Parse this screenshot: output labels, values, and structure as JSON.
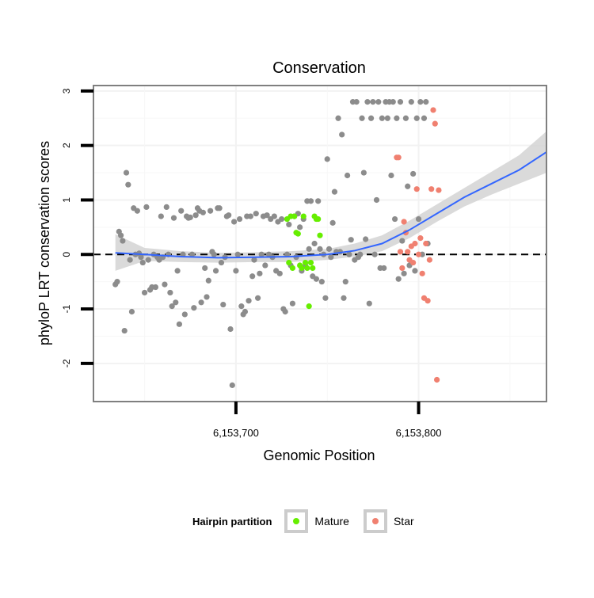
{
  "chart_data": {
    "type": "scatter",
    "title": "Conservation",
    "xlabel": "Genomic Position",
    "ylabel": "phyloP LRT conservation scores",
    "xlim": [
      6153622,
      6153870
    ],
    "ylim": [
      -2.7,
      3.1
    ],
    "x_ticks": [
      {
        "value": 6153700,
        "label": "6,153,700"
      },
      {
        "value": 6153800,
        "label": "6,153,800"
      }
    ],
    "y_ticks": [
      {
        "value": -2,
        "label": "-2"
      },
      {
        "value": -1,
        "label": "-1"
      },
      {
        "value": 0,
        "label": "0"
      },
      {
        "value": 1,
        "label": "1"
      },
      {
        "value": 2,
        "label": "2"
      },
      {
        "value": 3,
        "label": "3"
      }
    ],
    "reference_line": {
      "y": 0,
      "style": "dashed",
      "color": "#000000"
    },
    "grid": true,
    "legend": {
      "title": "Hairpin partition",
      "position": "bottom",
      "entries": [
        {
          "name": "Mature",
          "color": "#66ee00"
        },
        {
          "name": "Star",
          "color": "#f08070"
        }
      ]
    },
    "colors": {
      "other": "#8c8c8c",
      "Mature": "#66ee00",
      "Star": "#f08070",
      "smooth": "#3366ff",
      "band": "#d3d3d3"
    },
    "series": [
      {
        "name": "",
        "color": "#8c8c8c",
        "points": [
          [
            6153634,
            -0.55
          ],
          [
            6153635,
            -0.5
          ],
          [
            6153636,
            0.42
          ],
          [
            6153637,
            0.35
          ],
          [
            6153638,
            0.25
          ],
          [
            6153639,
            -1.4
          ],
          [
            6153640,
            1.5
          ],
          [
            6153641,
            1.28
          ],
          [
            6153642,
            -0.1
          ],
          [
            6153643,
            -1.05
          ],
          [
            6153644,
            0.85
          ],
          [
            6153645,
            0.0
          ],
          [
            6153646,
            0.8
          ],
          [
            6153647,
            0.02
          ],
          [
            6153648,
            -0.05
          ],
          [
            6153649,
            -0.15
          ],
          [
            6153650,
            -0.7
          ],
          [
            6153651,
            0.87
          ],
          [
            6153652,
            -0.1
          ],
          [
            6153653,
            -0.65
          ],
          [
            6153654,
            -0.6
          ],
          [
            6153655,
            0.0
          ],
          [
            6153656,
            -0.6
          ],
          [
            6153657,
            -0.05
          ],
          [
            6153658,
            -0.1
          ],
          [
            6153659,
            0.7
          ],
          [
            6153660,
            -0.05
          ],
          [
            6153661,
            -0.55
          ],
          [
            6153662,
            0.87
          ],
          [
            6153663,
            0.0
          ],
          [
            6153664,
            -0.7
          ],
          [
            6153665,
            -0.95
          ],
          [
            6153666,
            0.67
          ],
          [
            6153667,
            -0.88
          ],
          [
            6153668,
            -0.3
          ],
          [
            6153669,
            -1.28
          ],
          [
            6153670,
            0.8
          ],
          [
            6153671,
            0.0
          ],
          [
            6153672,
            -1.1
          ],
          [
            6153673,
            0.7
          ],
          [
            6153674,
            0.67
          ],
          [
            6153675,
            0.68
          ],
          [
            6153676,
            0.0
          ],
          [
            6153677,
            -0.98
          ],
          [
            6153678,
            0.72
          ],
          [
            6153679,
            0.85
          ],
          [
            6153680,
            0.8
          ],
          [
            6153681,
            -0.88
          ],
          [
            6153682,
            0.77
          ],
          [
            6153683,
            -0.25
          ],
          [
            6153684,
            -0.78
          ],
          [
            6153685,
            -0.48
          ],
          [
            6153686,
            0.8
          ],
          [
            6153687,
            0.05
          ],
          [
            6153688,
            0.0
          ],
          [
            6153689,
            -0.3
          ],
          [
            6153690,
            0.85
          ],
          [
            6153691,
            0.85
          ],
          [
            6153692,
            -0.15
          ],
          [
            6153693,
            -0.92
          ],
          [
            6153694,
            -0.05
          ],
          [
            6153695,
            0.7
          ],
          [
            6153696,
            0.72
          ],
          [
            6153697,
            -1.37
          ],
          [
            6153698,
            -2.4
          ],
          [
            6153699,
            0.6
          ],
          [
            6153700,
            -0.3
          ],
          [
            6153701,
            0.0
          ],
          [
            6153702,
            0.65
          ],
          [
            6153703,
            -0.95
          ],
          [
            6153704,
            -1.1
          ],
          [
            6153705,
            -1.05
          ],
          [
            6153706,
            0.7
          ],
          [
            6153707,
            -0.85
          ],
          [
            6153708,
            0.7
          ],
          [
            6153709,
            -0.4
          ],
          [
            6153710,
            -0.1
          ],
          [
            6153711,
            0.75
          ],
          [
            6153712,
            -0.8
          ],
          [
            6153713,
            -0.35
          ],
          [
            6153714,
            0.0
          ],
          [
            6153715,
            0.7
          ],
          [
            6153716,
            -0.2
          ],
          [
            6153717,
            0.72
          ],
          [
            6153718,
            0.0
          ],
          [
            6153719,
            0.65
          ],
          [
            6153720,
            -0.05
          ],
          [
            6153721,
            0.7
          ],
          [
            6153722,
            -0.3
          ],
          [
            6153723,
            0.6
          ],
          [
            6153724,
            -0.35
          ],
          [
            6153725,
            0.65
          ],
          [
            6153726,
            -1.0
          ],
          [
            6153727,
            -1.05
          ],
          [
            6153728,
            0.0
          ],
          [
            6153729,
            0.55
          ],
          [
            6153730,
            -0.2
          ],
          [
            6153731,
            -0.9
          ],
          [
            6153732,
            0.7
          ],
          [
            6153733,
            -0.05
          ],
          [
            6153734,
            0.75
          ],
          [
            6153735,
            0.5
          ],
          [
            6153736,
            -0.3
          ],
          [
            6153737,
            0.65
          ],
          [
            6153738,
            -0.2
          ],
          [
            6153739,
            0.98
          ],
          [
            6153740,
            0.1
          ],
          [
            6153741,
            0.98
          ],
          [
            6153742,
            -0.4
          ],
          [
            6153743,
            0.2
          ],
          [
            6153744,
            -0.45
          ],
          [
            6153745,
            0.98
          ],
          [
            6153746,
            0.1
          ],
          [
            6153747,
            -0.5
          ],
          [
            6153748,
            0.0
          ],
          [
            6153749,
            -0.8
          ],
          [
            6153750,
            1.75
          ],
          [
            6153751,
            0.1
          ],
          [
            6153752,
            -0.05
          ],
          [
            6153753,
            0.58
          ],
          [
            6153754,
            1.15
          ],
          [
            6153755,
            0.05
          ],
          [
            6153756,
            2.5
          ],
          [
            6153757,
            0.05
          ],
          [
            6153758,
            2.2
          ],
          [
            6153759,
            -0.8
          ],
          [
            6153760,
            -0.5
          ],
          [
            6153761,
            1.45
          ],
          [
            6153762,
            0.0
          ],
          [
            6153763,
            0.27
          ],
          [
            6153764,
            2.8
          ],
          [
            6153765,
            -0.1
          ],
          [
            6153766,
            2.8
          ],
          [
            6153767,
            -0.05
          ],
          [
            6153768,
            0.0
          ],
          [
            6153769,
            2.5
          ],
          [
            6153770,
            1.5
          ],
          [
            6153771,
            0.28
          ],
          [
            6153772,
            2.8
          ],
          [
            6153773,
            -0.9
          ],
          [
            6153774,
            2.5
          ],
          [
            6153775,
            2.8
          ],
          [
            6153776,
            0.0
          ],
          [
            6153777,
            1.0
          ],
          [
            6153778,
            2.8
          ],
          [
            6153779,
            -0.25
          ],
          [
            6153780,
            2.5
          ],
          [
            6153781,
            -0.25
          ],
          [
            6153782,
            2.8
          ],
          [
            6153783,
            2.5
          ],
          [
            6153784,
            2.8
          ],
          [
            6153785,
            1.45
          ],
          [
            6153786,
            2.8
          ],
          [
            6153787,
            0.65
          ],
          [
            6153788,
            2.5
          ],
          [
            6153789,
            -0.45
          ],
          [
            6153790,
            2.8
          ],
          [
            6153791,
            0.25
          ],
          [
            6153792,
            -0.35
          ],
          [
            6153793,
            2.5
          ],
          [
            6153794,
            1.25
          ],
          [
            6153795,
            -0.2
          ],
          [
            6153796,
            2.8
          ],
          [
            6153797,
            1.48
          ],
          [
            6153798,
            -0.3
          ],
          [
            6153799,
            2.5
          ],
          [
            6153800,
            0.65
          ],
          [
            6153801,
            2.8
          ],
          [
            6153802,
            0.0
          ],
          [
            6153803,
            2.5
          ],
          [
            6153804,
            2.8
          ],
          [
            6153805,
            0.2
          ]
        ]
      },
      {
        "name": "Mature",
        "color": "#66ee00",
        "points": [
          [
            6153728,
            0.65
          ],
          [
            6153729,
            -0.15
          ],
          [
            6153730,
            0.7
          ],
          [
            6153731,
            -0.25
          ],
          [
            6153732,
            0.7
          ],
          [
            6153733,
            0.4
          ],
          [
            6153734,
            0.38
          ],
          [
            6153735,
            -0.2
          ],
          [
            6153736,
            -0.25
          ],
          [
            6153737,
            0.7
          ],
          [
            6153738,
            -0.15
          ],
          [
            6153739,
            -0.25
          ],
          [
            6153740,
            -0.95
          ],
          [
            6153741,
            -0.15
          ],
          [
            6153742,
            -0.25
          ],
          [
            6153743,
            0.7
          ],
          [
            6153744,
            0.65
          ],
          [
            6153745,
            0.65
          ],
          [
            6153746,
            0.35
          ]
        ]
      },
      {
        "name": "Star",
        "color": "#f08070",
        "points": [
          [
            6153788,
            1.78
          ],
          [
            6153789,
            1.78
          ],
          [
            6153790,
            0.05
          ],
          [
            6153791,
            -0.25
          ],
          [
            6153792,
            0.6
          ],
          [
            6153793,
            0.4
          ],
          [
            6153794,
            0.05
          ],
          [
            6153795,
            -0.1
          ],
          [
            6153796,
            0.15
          ],
          [
            6153797,
            -0.15
          ],
          [
            6153798,
            0.2
          ],
          [
            6153799,
            1.2
          ],
          [
            6153800,
            0.0
          ],
          [
            6153801,
            0.3
          ],
          [
            6153802,
            -0.35
          ],
          [
            6153803,
            -0.8
          ],
          [
            6153804,
            0.2
          ],
          [
            6153805,
            -0.85
          ],
          [
            6153806,
            -0.1
          ],
          [
            6153807,
            1.2
          ],
          [
            6153808,
            2.65
          ],
          [
            6153809,
            2.4
          ],
          [
            6153810,
            -2.3
          ],
          [
            6153811,
            1.18
          ]
        ]
      }
    ],
    "smooth": {
      "x": [
        6153634,
        6153650,
        6153670,
        6153690,
        6153710,
        6153730,
        6153750,
        6153765,
        6153780,
        6153795,
        6153810,
        6153825,
        6153840,
        6153855,
        6153870
      ],
      "y": [
        0.03,
        0.0,
        -0.04,
        -0.06,
        -0.05,
        -0.04,
        0.0,
        0.07,
        0.2,
        0.45,
        0.75,
        1.05,
        1.3,
        1.55,
        1.88
      ],
      "lower": [
        -0.3,
        -0.12,
        -0.14,
        -0.15,
        -0.14,
        -0.14,
        -0.1,
        -0.04,
        0.06,
        0.3,
        0.6,
        0.88,
        1.1,
        1.3,
        1.5
      ],
      "upper": [
        0.37,
        0.12,
        0.06,
        0.03,
        0.04,
        0.06,
        0.1,
        0.2,
        0.35,
        0.62,
        0.92,
        1.22,
        1.52,
        1.82,
        2.26
      ]
    }
  }
}
